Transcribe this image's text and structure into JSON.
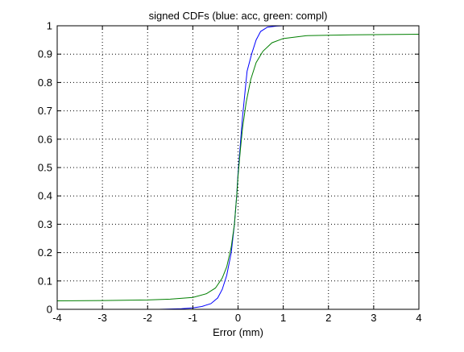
{
  "chart_data": {
    "type": "line",
    "title": "signed CDFs (blue: acc, green: compl)",
    "xlabel": "Error (mm)",
    "ylabel": "",
    "xlim": [
      -4,
      4
    ],
    "ylim": [
      0,
      1
    ],
    "grid": true,
    "x_ticks": [
      "-4",
      "-3",
      "-2",
      "-1",
      "0",
      "1",
      "2",
      "3",
      "4"
    ],
    "y_ticks": [
      "0",
      "0.1",
      "0.2",
      "0.3",
      "0.4",
      "0.5",
      "0.6",
      "0.7",
      "0.8",
      "0.9",
      "1"
    ],
    "series": [
      {
        "color": "#0000ff",
        "points": [
          [
            -1.75,
            0.0
          ],
          [
            -1.5,
            0.001
          ],
          [
            -1.25,
            0.002
          ],
          [
            -1.0,
            0.005
          ],
          [
            -0.8,
            0.01
          ],
          [
            -0.6,
            0.02
          ],
          [
            -0.45,
            0.04
          ],
          [
            -0.35,
            0.07
          ],
          [
            -0.25,
            0.12
          ],
          [
            -0.15,
            0.2
          ],
          [
            -0.08,
            0.3
          ],
          [
            -0.03,
            0.4
          ],
          [
            0.0,
            0.48
          ],
          [
            0.05,
            0.58
          ],
          [
            0.1,
            0.68
          ],
          [
            0.15,
            0.76
          ],
          [
            0.2,
            0.84
          ],
          [
            0.3,
            0.9
          ],
          [
            0.4,
            0.95
          ],
          [
            0.5,
            0.98
          ],
          [
            0.65,
            0.995
          ],
          [
            0.85,
            0.999
          ],
          [
            1.0,
            1.0
          ],
          [
            2.0,
            1.0
          ]
        ]
      },
      {
        "color": "#007f00",
        "points": [
          [
            -4.0,
            0.03
          ],
          [
            -3.0,
            0.031
          ],
          [
            -2.0,
            0.033
          ],
          [
            -1.5,
            0.036
          ],
          [
            -1.0,
            0.042
          ],
          [
            -0.7,
            0.055
          ],
          [
            -0.5,
            0.075
          ],
          [
            -0.35,
            0.11
          ],
          [
            -0.25,
            0.15
          ],
          [
            -0.15,
            0.22
          ],
          [
            -0.08,
            0.3
          ],
          [
            -0.03,
            0.4
          ],
          [
            0.0,
            0.47
          ],
          [
            0.05,
            0.56
          ],
          [
            0.1,
            0.64
          ],
          [
            0.18,
            0.73
          ],
          [
            0.28,
            0.81
          ],
          [
            0.4,
            0.87
          ],
          [
            0.55,
            0.91
          ],
          [
            0.75,
            0.94
          ],
          [
            1.0,
            0.955
          ],
          [
            1.5,
            0.965
          ],
          [
            2.5,
            0.968
          ],
          [
            4.0,
            0.97
          ]
        ]
      }
    ]
  }
}
